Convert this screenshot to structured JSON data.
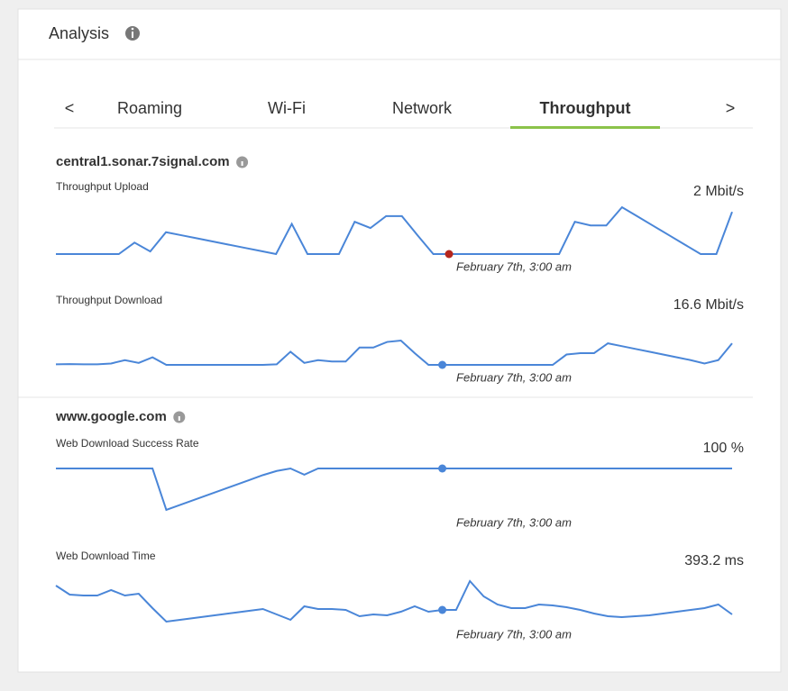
{
  "header": {
    "title": "Analysis"
  },
  "tabs": {
    "prev": "<",
    "next": ">",
    "items": [
      "Roaming",
      "Wi-Fi",
      "Network",
      "Throughput"
    ],
    "active_index": 3,
    "active_color": "#8bc34a"
  },
  "sections": [
    {
      "host": "central1.sonar.7signal.com",
      "metrics": [
        {
          "label": "Throughput Upload",
          "current": "2 Mbit/s",
          "current_color": "#b5261e",
          "color": "#4a86d8",
          "values": [
            0,
            0,
            0,
            0,
            0,
            22,
            5,
            42,
            36,
            30,
            24,
            18,
            12,
            6,
            0,
            58,
            0,
            0,
            0,
            62,
            50,
            73,
            73,
            36,
            0,
            0,
            0,
            0,
            0,
            0,
            0,
            0,
            0,
            62,
            55,
            55,
            90,
            72,
            54,
            36,
            18,
            0,
            0,
            81
          ],
          "marker_label": "February 7th, 3:00 am"
        },
        {
          "label": "Throughput Download",
          "current": "16.6 Mbit/s",
          "current_color": "#4a86d8",
          "color": "#4a86d8",
          "values": [
            5,
            6,
            5,
            5,
            8,
            20,
            10,
            30,
            3,
            3,
            3,
            3,
            3,
            3,
            3,
            3,
            5,
            50,
            10,
            20,
            15,
            15,
            65,
            65,
            85,
            90,
            45,
            3,
            3,
            3,
            3,
            3,
            3,
            3,
            3,
            3,
            3,
            40,
            45,
            45,
            80,
            70,
            60,
            50,
            40,
            30,
            20,
            8,
            20,
            80
          ],
          "marker_label": "February 7th, 3:00 am"
        }
      ]
    },
    {
      "host": "www.google.com",
      "metrics": [
        {
          "label": "Web Download Success Rate",
          "current": "100 %",
          "current_color": "#4a86d8",
          "color": "#4a86d8",
          "values": [
            100,
            100,
            100,
            100,
            100,
            100,
            100,
            100,
            0,
            12,
            24,
            36,
            48,
            60,
            72,
            84,
            94,
            100,
            85,
            100,
            100,
            100,
            100,
            100,
            100,
            100,
            100,
            100,
            100,
            100,
            100,
            100,
            100,
            100,
            100,
            100,
            100,
            100,
            100,
            100,
            100,
            100,
            100,
            100,
            100,
            100,
            100,
            100,
            100,
            100
          ],
          "marker_label": "February 7th, 3:00 am"
        },
        {
          "label": "Web Download Time",
          "current": "393.2 ms",
          "current_color": "#4a86d8",
          "color": "#4a86d8",
          "values": [
            90,
            70,
            68,
            68,
            80,
            68,
            72,
            40,
            10,
            14,
            18,
            22,
            26,
            30,
            34,
            38,
            26,
            14,
            44,
            38,
            38,
            36,
            22,
            26,
            24,
            32,
            44,
            32,
            36,
            36,
            100,
            66,
            48,
            40,
            40,
            48,
            46,
            42,
            36,
            28,
            22,
            20,
            22,
            24,
            28,
            32,
            36,
            40,
            48,
            26
          ],
          "marker_label": "February 7th, 3:00 am"
        }
      ]
    }
  ]
}
